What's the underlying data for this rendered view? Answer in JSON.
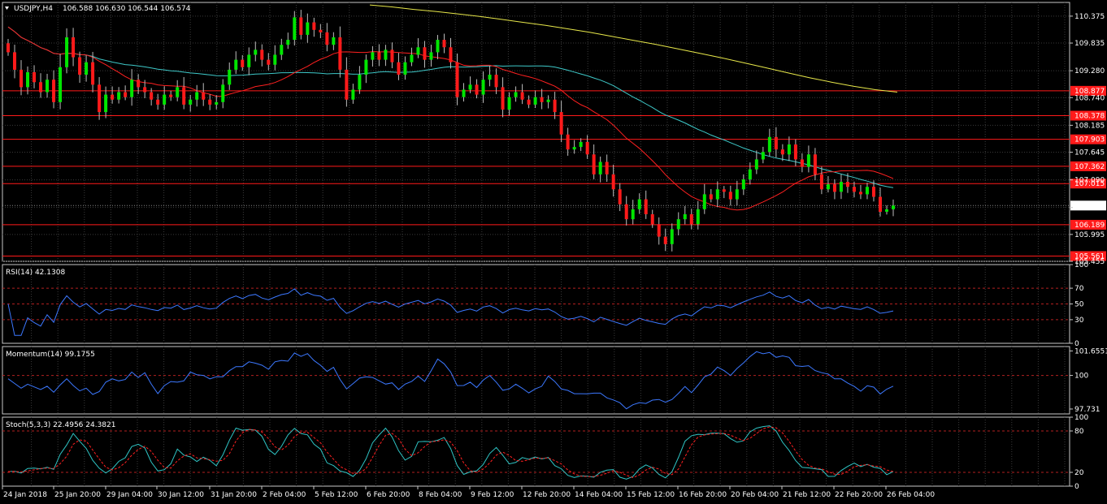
{
  "panels": {
    "price": {
      "symbol_label": "USDJPY,H4",
      "ohlc_readout": "106.588 106.630 106.544 106.574",
      "current_price_label": "106.574",
      "y_min": 105.455,
      "y_max": 110.65,
      "tick_labels": [
        "110.375",
        "109.835",
        "109.280",
        "108.740",
        "108.185",
        "107.645",
        "107.090",
        "106.535",
        "105.995",
        "105.455"
      ],
      "level_labels": [
        "108.877",
        "108.378",
        "107.903",
        "107.362",
        "107.015",
        "106.189",
        "105.561"
      ]
    },
    "rsi": {
      "title": "RSI(14) 42.1308",
      "min": 0,
      "max": 100,
      "tick_labels": [
        "100",
        "70",
        "50",
        "30",
        "0"
      ],
      "levels": [
        70,
        50,
        30
      ]
    },
    "momentum": {
      "title": "Momentum(14) 99.1755",
      "min": 97.4,
      "max": 101.95,
      "tick_labels": [
        "101.6551",
        "100",
        "97.731"
      ],
      "levels": [
        100
      ]
    },
    "stoch": {
      "title": "Stoch(5,3,3) 22.4956 24.3821",
      "min": 0,
      "max": 100,
      "tick_labels": [
        "100",
        "80",
        "20",
        "0"
      ],
      "levels": [
        80,
        20
      ]
    }
  },
  "time_axis": {
    "labels": [
      "24 Jan 2018",
      "25 Jan 20:00",
      "29 Jan 04:00",
      "30 Jan 12:00",
      "31 Jan 20:00",
      "2 Feb 04:00",
      "5 Feb 12:00",
      "6 Feb 20:00",
      "8 Feb 04:00",
      "9 Feb 12:00",
      "12 Feb 20:00",
      "14 Feb 04:00",
      "15 Feb 12:00",
      "16 Feb 20:00",
      "20 Feb 04:00",
      "21 Feb 12:00",
      "22 Feb 20:00",
      "26 Feb 04:00"
    ]
  },
  "colors": {
    "background": "#000000",
    "grid": "#3a3a3a",
    "bull": "#00e600",
    "bear": "#ff1a1a",
    "ma_fast": "#ff2020",
    "ma_mid": "#3ec9c9",
    "ma_slow": "#e8e84a",
    "indicator_line": "#3c78ff",
    "signal_line": "#ff2020",
    "stoch_main": "#2fc6c6",
    "level_line": "#ff1a1a",
    "level_dash": "#b22020",
    "text": "#ffffff"
  },
  "chart_data": [
    {
      "type": "candlestick",
      "title": "USDJPY,H4",
      "x_ticks": [
        "24 Jan 2018",
        "25 Jan 20:00",
        "29 Jan 04:00",
        "30 Jan 12:00",
        "31 Jan 20:00",
        "2 Feb 04:00",
        "5 Feb 12:00",
        "6 Feb 20:00",
        "8 Feb 04:00",
        "9 Feb 12:00",
        "12 Feb 20:00",
        "14 Feb 04:00",
        "15 Feb 12:00",
        "16 Feb 20:00",
        "20 Feb 04:00",
        "21 Feb 12:00",
        "22 Feb 20:00",
        "26 Feb 04:00"
      ],
      "ylim": [
        105.455,
        110.65
      ],
      "close": [
        109.65,
        109.3,
        108.95,
        109.25,
        109.05,
        108.85,
        109.1,
        108.65,
        109.35,
        109.95,
        109.55,
        109.2,
        109.45,
        109.0,
        108.45,
        108.8,
        108.7,
        108.85,
        108.75,
        109.1,
        108.95,
        108.85,
        108.7,
        108.6,
        108.8,
        108.75,
        108.95,
        108.6,
        108.7,
        108.85,
        108.7,
        108.6,
        108.65,
        109.0,
        109.3,
        109.5,
        109.35,
        109.6,
        109.7,
        109.5,
        109.4,
        109.6,
        109.8,
        109.9,
        110.35,
        110.0,
        110.25,
        110.1,
        110.05,
        109.8,
        109.95,
        109.3,
        108.7,
        108.9,
        109.2,
        109.5,
        109.65,
        109.5,
        109.7,
        109.45,
        109.2,
        109.45,
        109.6,
        109.75,
        109.5,
        109.65,
        109.9,
        109.75,
        109.45,
        108.75,
        108.9,
        109.0,
        108.8,
        109.1,
        109.2,
        108.95,
        108.5,
        108.75,
        108.85,
        108.7,
        108.6,
        108.75,
        108.65,
        108.7,
        108.45,
        108.0,
        107.7,
        107.75,
        107.85,
        107.6,
        107.2,
        107.45,
        107.2,
        106.9,
        106.6,
        106.3,
        106.5,
        106.7,
        106.4,
        106.2,
        105.95,
        105.8,
        106.1,
        106.3,
        106.4,
        106.2,
        106.5,
        106.8,
        106.7,
        106.9,
        106.85,
        106.7,
        106.9,
        107.1,
        107.3,
        107.5,
        107.65,
        107.95,
        107.7,
        107.6,
        107.8,
        107.5,
        107.35,
        107.6,
        107.2,
        106.9,
        107.0,
        106.85,
        107.05,
        106.95,
        106.85,
        106.8,
        106.95,
        106.75,
        106.45,
        106.5,
        106.574
      ],
      "ma_fast_period": 20,
      "ma_mid_period": 50,
      "ma_slow": [
        110.6,
        110.56,
        110.51,
        110.47,
        110.42,
        110.37,
        110.31,
        110.25,
        110.19,
        110.12,
        110.05,
        109.97,
        109.89,
        109.81,
        109.72,
        109.63,
        109.54,
        109.44,
        109.34,
        109.24,
        109.14,
        109.05,
        108.97,
        108.9,
        108.85
      ]
    },
    {
      "type": "line",
      "title": "RSI(14) 42.1308",
      "ylim": [
        0,
        100
      ],
      "levels": [
        70,
        50,
        30
      ]
    },
    {
      "type": "line",
      "title": "Momentum(14) 99.1755",
      "ylim": [
        97.4,
        101.95
      ],
      "levels": [
        100
      ]
    },
    {
      "type": "line",
      "title": "Stoch(5,3,3) 22.4956 24.3821",
      "ylim": [
        0,
        100
      ],
      "levels": [
        80,
        20
      ],
      "smoothing": 3
    }
  ]
}
